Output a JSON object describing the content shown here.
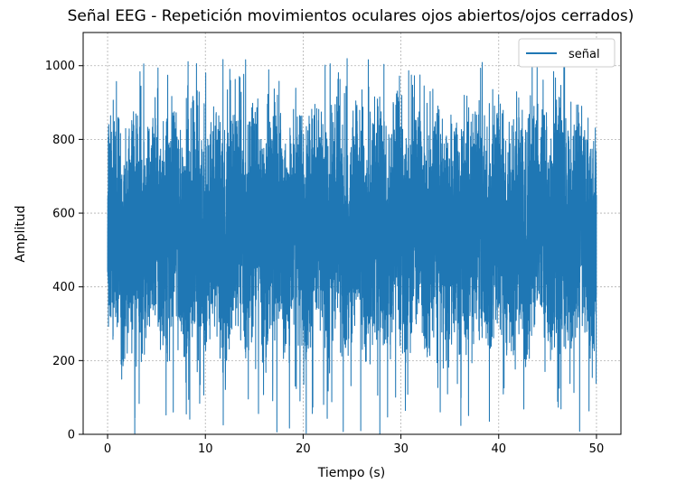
{
  "chart_data": {
    "type": "line",
    "title": "Señal EEG - Repetición movimientos oculares ojos abiertos/ojos cerrados)",
    "xlabel": "Tiempo (s)",
    "ylabel": "Amplitud",
    "xlim": [
      -2.5,
      52.5
    ],
    "ylim": [
      0,
      1090
    ],
    "xticks": [
      0,
      10,
      20,
      30,
      40,
      50
    ],
    "yticks": [
      0,
      200,
      400,
      600,
      800,
      1000
    ],
    "xtick_labels": [
      "0",
      "10",
      "20",
      "30",
      "40",
      "50"
    ],
    "ytick_labels": [
      "0",
      "200",
      "400",
      "600",
      "800",
      "1000"
    ],
    "grid": true,
    "legend_position": "upper right",
    "series": [
      {
        "name": "señal",
        "color": "#1f77b4",
        "x_range": [
          0,
          50
        ],
        "y_range": [
          0,
          1020
        ],
        "typical_band": [
          280,
          820
        ]
      }
    ]
  }
}
